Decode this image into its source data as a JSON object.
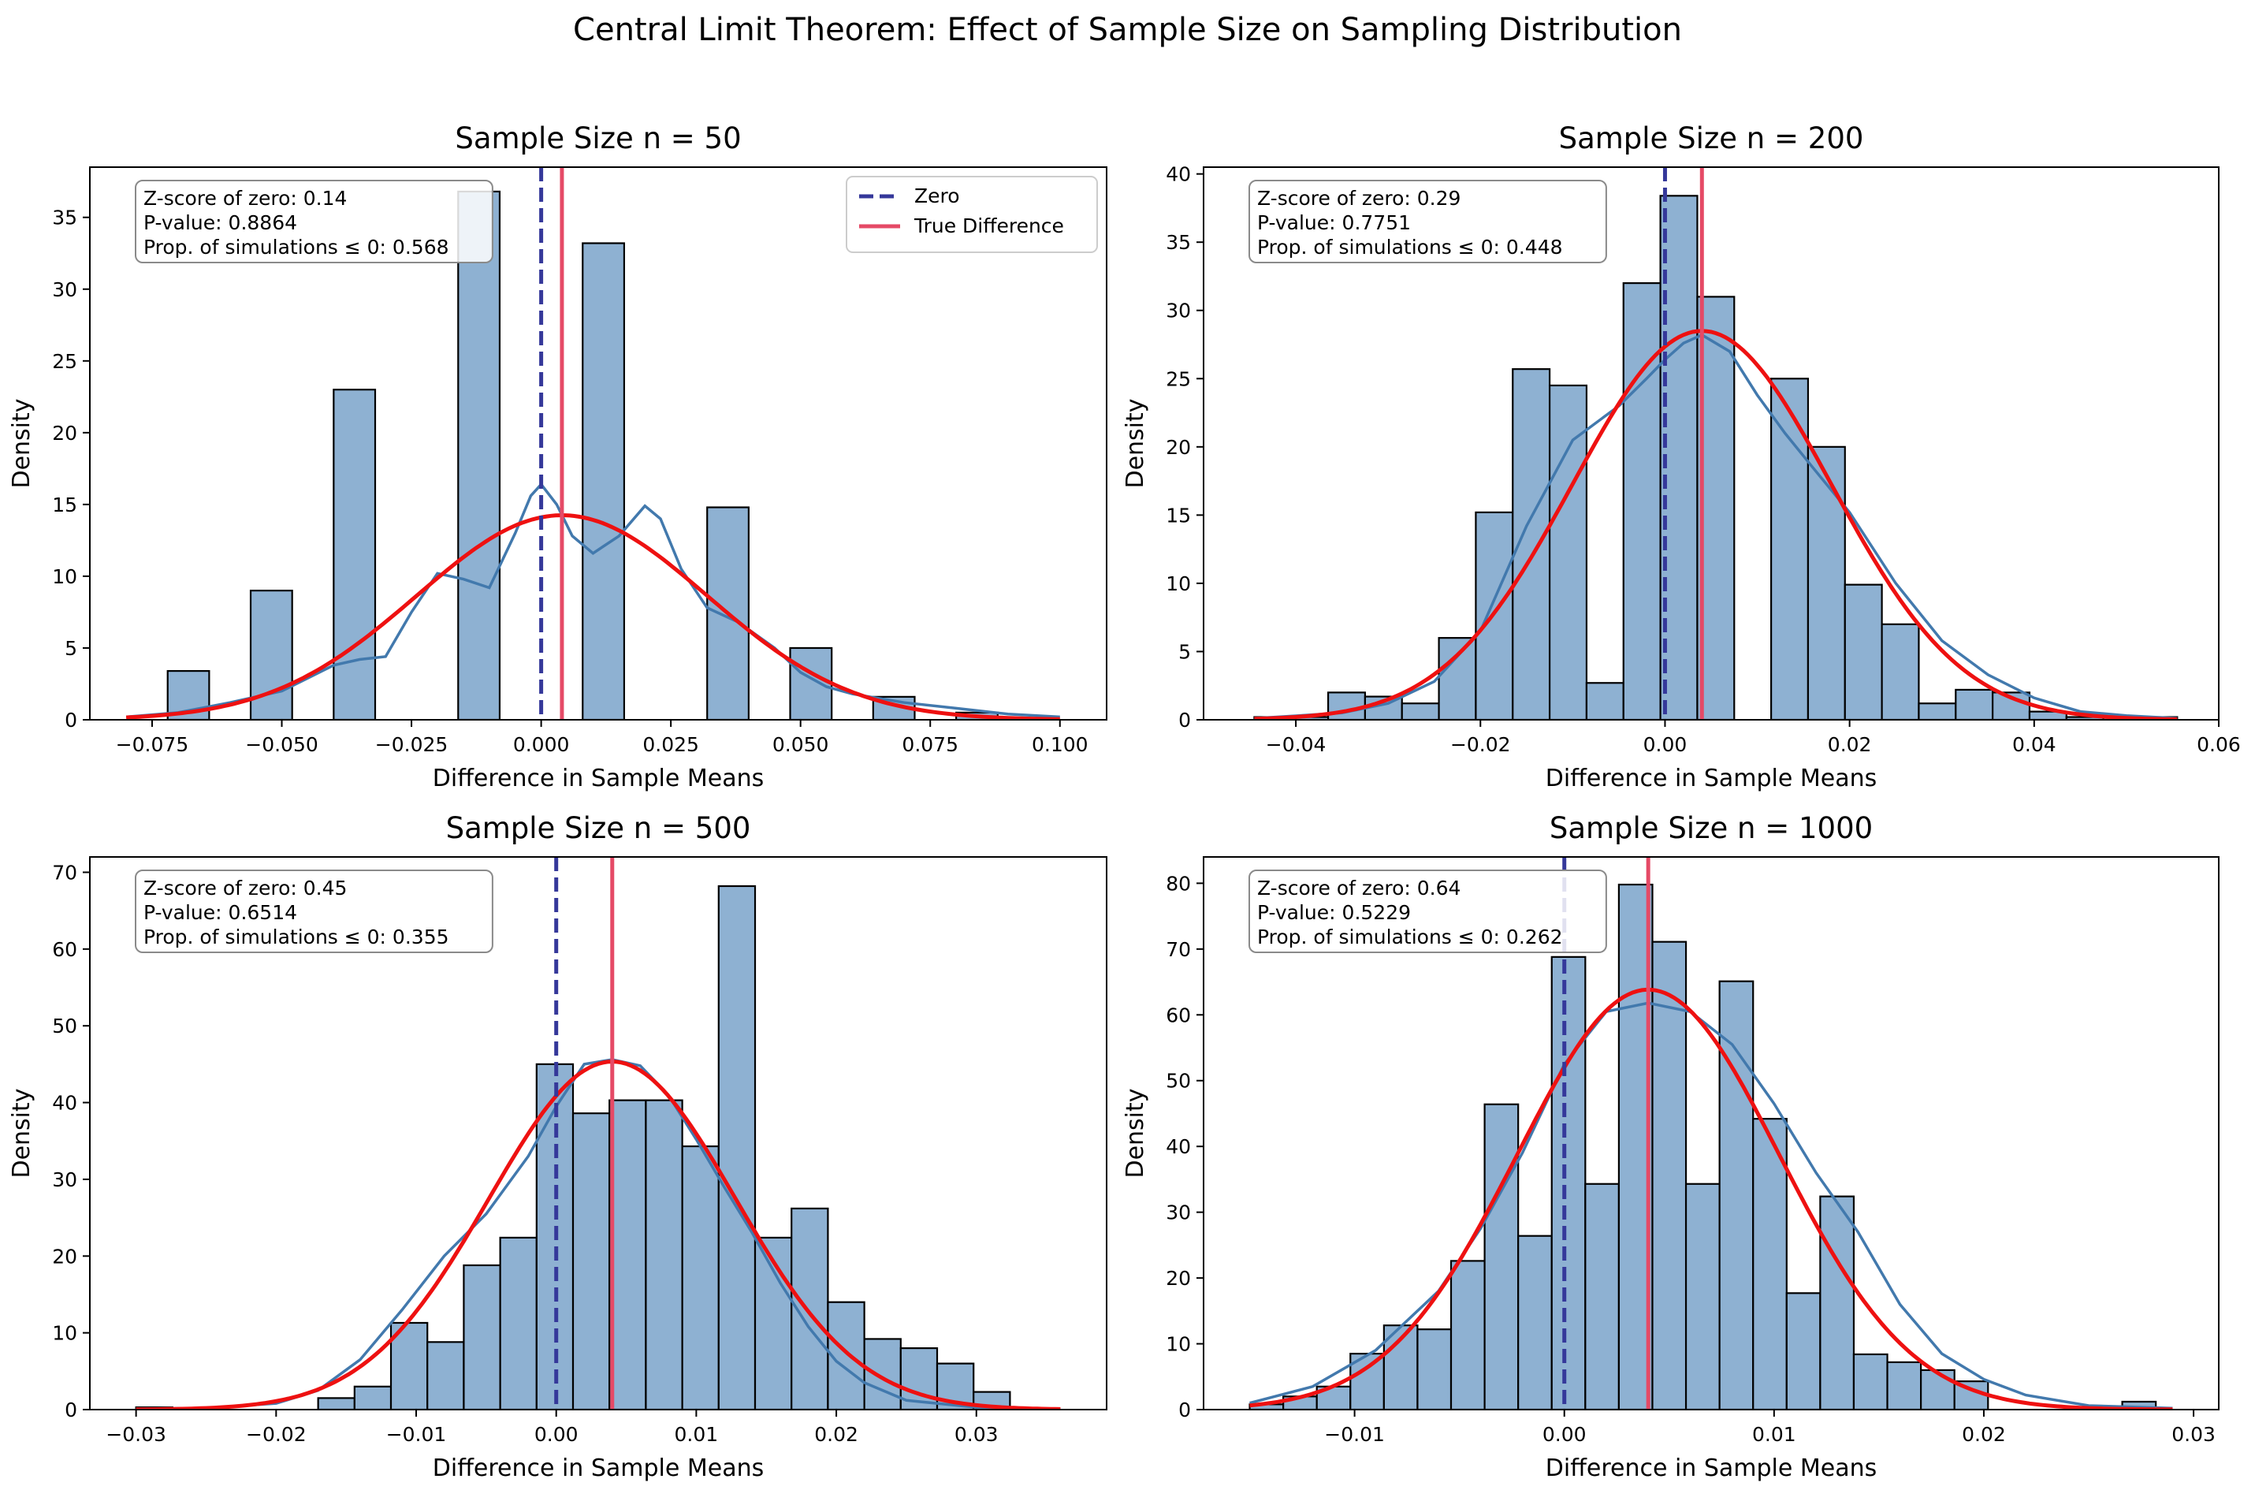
{
  "figure_title": "Central Limit Theorem: Effect of Sample Size on Sampling Distribution",
  "colors": {
    "bar_fill": "#8eb1d2",
    "bar_edge": "#000000",
    "kde": "#4279ad",
    "normal_fit": "#ee1111",
    "zero_line": "#35389a",
    "true_line": "#e54a66"
  },
  "chart_data": [
    {
      "type": "bar",
      "title": "Sample Size n = 50",
      "xlabel": "Difference in Sample Means",
      "ylabel": "Density",
      "xlim": [
        -0.087,
        0.109
      ],
      "ylim": [
        0,
        38.5
      ],
      "xticks": [
        -0.075,
        -0.05,
        -0.025,
        0.0,
        0.025,
        0.05,
        0.075,
        0.1
      ],
      "xtick_labels": [
        "−0.075",
        "−0.050",
        "−0.025",
        "0.000",
        "0.025",
        "0.050",
        "0.075",
        "0.100"
      ],
      "yticks": [
        0,
        5,
        10,
        15,
        20,
        25,
        30,
        35
      ],
      "bins": {
        "start": -0.08,
        "width": 0.008,
        "values": [
          0,
          3.4,
          0,
          9.0,
          0,
          23.0,
          0,
          0,
          36.8,
          0,
          0,
          33.2,
          0,
          0,
          14.8,
          0,
          5.0,
          0,
          1.6,
          0,
          0.5
        ]
      },
      "kde": {
        "x": [
          -0.08,
          -0.07,
          -0.06,
          -0.05,
          -0.04,
          -0.035,
          -0.03,
          -0.025,
          -0.02,
          -0.015,
          -0.01,
          -0.005,
          -0.002,
          0.0,
          0.003,
          0.006,
          0.01,
          0.015,
          0.02,
          0.023,
          0.027,
          0.032,
          0.038,
          0.045,
          0.05,
          0.055,
          0.06,
          0.065,
          0.07,
          0.08,
          0.09,
          0.1
        ],
        "y": [
          0.2,
          0.5,
          1.2,
          2.0,
          3.8,
          4.2,
          4.4,
          7.5,
          10.2,
          9.8,
          9.2,
          13.0,
          15.6,
          16.4,
          15.0,
          12.8,
          11.6,
          12.8,
          14.9,
          14.0,
          10.5,
          7.8,
          6.8,
          5.0,
          3.3,
          2.3,
          1.8,
          1.5,
          1.2,
          0.8,
          0.4,
          0.2
        ]
      },
      "normal_fit": {
        "mean": 0.004,
        "sd": 0.028,
        "xmin": -0.08,
        "xmax": 0.1
      },
      "vlines": {
        "zero": 0.0,
        "true_difference": 0.004
      },
      "legend": {
        "position": "top-right",
        "entries": [
          "Zero",
          "True Difference"
        ]
      },
      "stats_box": [
        "Z-score of zero: 0.14",
        "P-value: 0.8864",
        "Prop. of simulations ≤ 0: 0.568"
      ]
    },
    {
      "type": "bar",
      "title": "Sample Size n = 200",
      "xlabel": "Difference in Sample Means",
      "ylabel": "Density",
      "xlim": [
        -0.05,
        0.06
      ],
      "ylim": [
        0,
        40.5
      ],
      "xticks": [
        -0.04,
        -0.02,
        0.0,
        0.02,
        0.04,
        0.06
      ],
      "xtick_labels": [
        "−0.04",
        "−0.02",
        "0.00",
        "0.02",
        "0.04",
        "0.06"
      ],
      "yticks": [
        0,
        5,
        10,
        15,
        20,
        25,
        30,
        35,
        40
      ],
      "bins": {
        "start": -0.0445,
        "width": 0.004,
        "values": [
          0.2,
          0.2,
          2.0,
          1.7,
          1.2,
          6.0,
          15.2,
          25.7,
          24.5,
          2.7,
          32.0,
          38.4,
          31.0,
          0,
          25.0,
          20.0,
          9.9,
          7.0,
          1.2,
          2.2,
          2.0,
          0.6,
          0.2,
          0.2,
          0.2
        ]
      },
      "kde": {
        "x": [
          -0.0445,
          -0.035,
          -0.03,
          -0.025,
          -0.02,
          -0.015,
          -0.01,
          -0.005,
          -0.002,
          0.0,
          0.002,
          0.004,
          0.007,
          0.01,
          0.013,
          0.016,
          0.02,
          0.025,
          0.03,
          0.035,
          0.04,
          0.045,
          0.05,
          0.0555
        ],
        "y": [
          0.1,
          0.5,
          1.2,
          2.8,
          6.5,
          14.2,
          20.5,
          23.0,
          25.0,
          26.4,
          27.6,
          28.2,
          27.0,
          23.8,
          21.0,
          18.5,
          15.2,
          10.0,
          5.8,
          3.3,
          1.6,
          0.6,
          0.3,
          0.1
        ]
      },
      "normal_fit": {
        "mean": 0.004,
        "sd": 0.014,
        "xmin": -0.0445,
        "xmax": 0.0555
      },
      "vlines": {
        "zero": 0.0,
        "true_difference": 0.004
      },
      "stats_box": [
        "Z-score of zero: 0.29",
        "P-value: 0.7751",
        "Prop. of simulations ≤ 0: 0.448"
      ]
    },
    {
      "type": "bar",
      "title": "Sample Size n = 500",
      "xlabel": "Difference in Sample Means",
      "ylabel": "Density",
      "xlim": [
        -0.0333,
        0.0393
      ],
      "ylim": [
        0,
        72
      ],
      "xticks": [
        -0.03,
        -0.02,
        -0.01,
        0.0,
        0.01,
        0.02,
        0.03
      ],
      "xtick_labels": [
        "−0.03",
        "−0.02",
        "−0.01",
        "0.00",
        "0.01",
        "0.02",
        "0.03"
      ],
      "yticks": [
        0,
        10,
        20,
        30,
        40,
        50,
        60,
        70
      ],
      "bins": {
        "start": -0.03,
        "width": 0.0026,
        "values": [
          0.3,
          0,
          0,
          0,
          0,
          1.5,
          3.0,
          11.3,
          8.8,
          18.8,
          22.4,
          45.0,
          38.6,
          40.3,
          40.3,
          34.3,
          68.2,
          22.4,
          26.2,
          14.0,
          9.2,
          8.0,
          6.0,
          2.3,
          0,
          0,
          0,
          0,
          0,
          0,
          0,
          0,
          0,
          0.8
        ]
      },
      "kde": {
        "x": [
          -0.03,
          -0.025,
          -0.02,
          -0.017,
          -0.014,
          -0.011,
          -0.008,
          -0.005,
          -0.002,
          0.0,
          0.002,
          0.004,
          0.006,
          0.008,
          0.01,
          0.012,
          0.014,
          0.016,
          0.018,
          0.02,
          0.022,
          0.025,
          0.03,
          0.036
        ],
        "y": [
          0.1,
          0.2,
          0.8,
          2.5,
          6.5,
          13.0,
          20.0,
          25.5,
          33.0,
          39.5,
          45.0,
          45.6,
          44.8,
          41.0,
          35.2,
          29.0,
          23.0,
          16.5,
          10.8,
          6.3,
          3.5,
          1.2,
          0.3,
          0.1
        ]
      },
      "normal_fit": {
        "mean": 0.004,
        "sd": 0.0088,
        "xmin": -0.03,
        "xmax": 0.036
      },
      "vlines": {
        "zero": 0.0,
        "true_difference": 0.004
      },
      "stats_box": [
        "Z-score of zero: 0.45",
        "P-value: 0.6514",
        "Prop. of simulations ≤ 0: 0.355"
      ]
    },
    {
      "type": "bar",
      "title": "Sample Size n = 1000",
      "xlabel": "Difference in Sample Means",
      "ylabel": "Density",
      "xlim": [
        -0.0172,
        0.0312
      ],
      "ylim": [
        0,
        84
      ],
      "xticks": [
        -0.01,
        0.0,
        0.01,
        0.02,
        0.03
      ],
      "xtick_labels": [
        "−0.01",
        "0.00",
        "0.01",
        "0.02",
        "0.03"
      ],
      "yticks": [
        0,
        10,
        20,
        30,
        40,
        50,
        60,
        70,
        80
      ],
      "bins": {
        "start": -0.015,
        "width": 0.0016,
        "values": [
          0.8,
          2.0,
          3.5,
          8.5,
          12.8,
          12.2,
          22.6,
          46.4,
          26.4,
          68.8,
          34.3,
          79.8,
          71.1,
          34.3,
          65.1,
          44.2,
          17.7,
          32.4,
          8.4,
          7.2,
          6.0,
          4.3,
          0,
          0,
          0,
          0,
          1.2
        ]
      },
      "kde": {
        "x": [
          -0.015,
          -0.012,
          -0.009,
          -0.006,
          -0.004,
          -0.002,
          0.0,
          0.002,
          0.004,
          0.006,
          0.008,
          0.01,
          0.012,
          0.014,
          0.016,
          0.018,
          0.02,
          0.022,
          0.025,
          0.029
        ],
        "y": [
          1.0,
          3.5,
          9.0,
          18.0,
          27.5,
          39.0,
          52.5,
          60.5,
          61.8,
          60.5,
          55.5,
          46.5,
          36.0,
          27.0,
          16.0,
          8.5,
          4.6,
          2.2,
          0.6,
          0.2
        ]
      },
      "normal_fit": {
        "mean": 0.004,
        "sd": 0.00625,
        "xmin": -0.015,
        "xmax": 0.029
      },
      "vlines": {
        "zero": 0.0,
        "true_difference": 0.004
      },
      "stats_box": [
        "Z-score of zero: 0.64",
        "P-value: 0.5229",
        "Prop. of simulations ≤ 0: 0.262"
      ]
    }
  ]
}
